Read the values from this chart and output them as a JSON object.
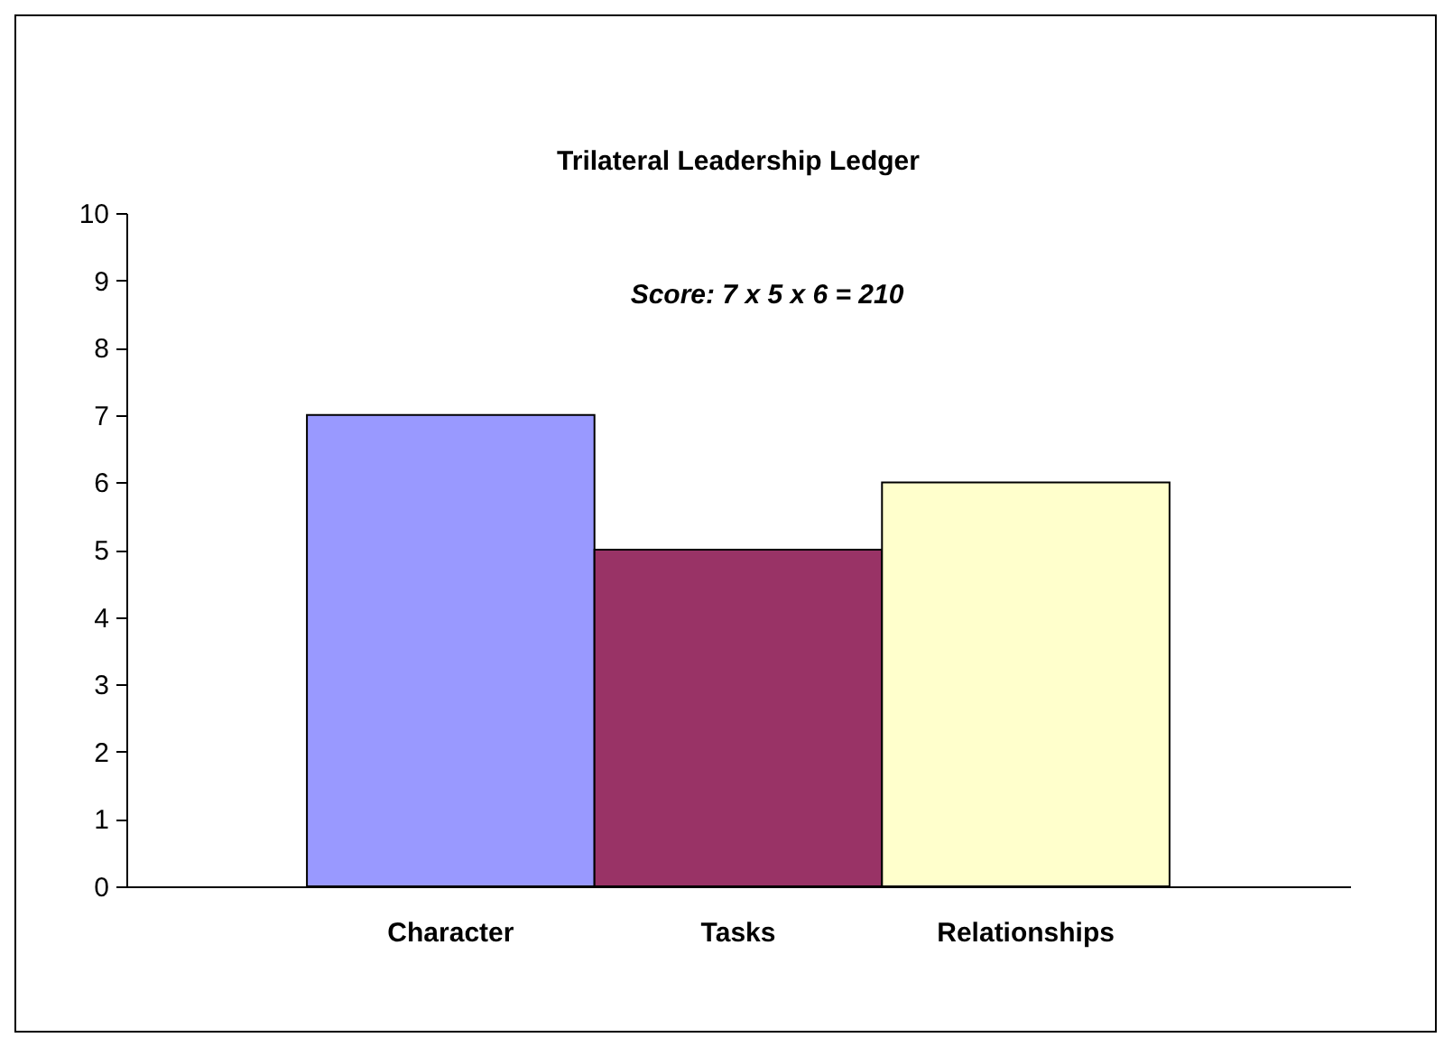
{
  "chart_data": {
    "type": "bar",
    "title": "Trilateral Leadership Ledger",
    "categories": [
      "Character",
      "Tasks",
      "Relationships"
    ],
    "values": [
      7,
      5,
      6
    ],
    "colors": [
      "#9999ff",
      "#993366",
      "#ffffcc"
    ],
    "ylim": [
      0,
      10
    ],
    "yticks": [
      0,
      1,
      2,
      3,
      4,
      5,
      6,
      7,
      8,
      9,
      10
    ],
    "grid": false,
    "legend": false,
    "annotations": [
      "Score: 7 x 5 x 6 = 210"
    ]
  }
}
